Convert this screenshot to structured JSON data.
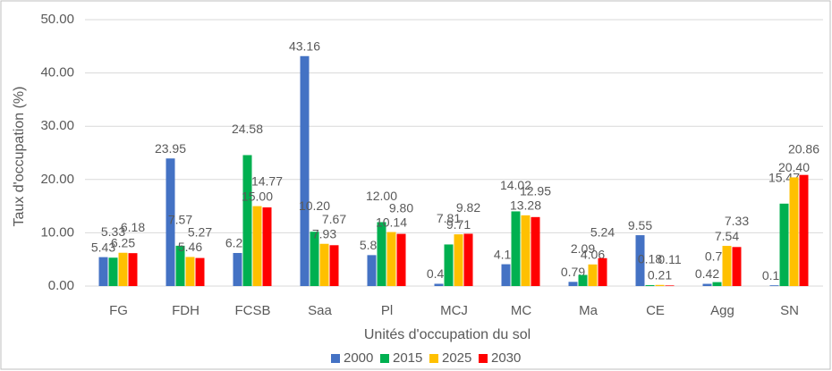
{
  "chart_data": {
    "type": "bar",
    "y_label": "Taux d'occupation (%)",
    "x_label": "Unités d'occupation du sol",
    "categories": [
      "FG",
      "FDH",
      "FCSB",
      "Saa",
      "Pl",
      "MCJ",
      "MC",
      "Ma",
      "CE",
      "Agg",
      "SN"
    ],
    "series": [
      {
        "name": "2000",
        "color": "#4472c4",
        "values": [
          5.43,
          23.95,
          6.21,
          43.16,
          5.81,
          0.43,
          4.1,
          0.79,
          9.55,
          0.42,
          0.14
        ],
        "value_labels": [
          "5.43",
          "23.95",
          "6.21",
          "43.16",
          "5.81",
          "0.43",
          "4.10",
          "0.79",
          "9.55",
          "0.42",
          "0.14"
        ]
      },
      {
        "name": "2015",
        "color": "#00b050",
        "values": [
          5.33,
          7.57,
          24.58,
          10.2,
          12.0,
          7.81,
          14.02,
          2.09,
          0.18,
          0.74,
          15.47
        ],
        "value_labels": [
          "5.33",
          "7.57",
          "24.58",
          "10.20",
          "12.00",
          "7.81",
          "14.02",
          "2.09",
          "0.18",
          "0.74",
          "15.47"
        ]
      },
      {
        "name": "2025",
        "color": "#ffc000",
        "values": [
          6.25,
          5.46,
          15.0,
          7.93,
          10.14,
          9.71,
          13.28,
          4.06,
          0.21,
          7.54,
          20.4
        ],
        "value_labels": [
          "6.25",
          "5.46",
          "15.00",
          "7.93",
          "10.14",
          "9.71",
          "13.28",
          "4.06",
          "0.21",
          "7.54",
          "20.40"
        ]
      },
      {
        "name": "2030",
        "color": "#ff0000",
        "values": [
          6.18,
          5.27,
          14.77,
          7.67,
          9.8,
          9.82,
          12.95,
          5.24,
          0.11,
          7.33,
          20.86
        ],
        "value_labels": [
          "6.18",
          "5.27",
          "14.77",
          "7.67",
          "9.80",
          "9.82",
          "12.95",
          "5.24",
          "0.11",
          "7.33",
          "20.86"
        ]
      }
    ],
    "ylim": [
      0,
      50
    ],
    "yticks": [
      {
        "value": 0,
        "label": "0.00"
      },
      {
        "value": 10,
        "label": "10.00"
      },
      {
        "value": 20,
        "label": "20.00"
      },
      {
        "value": 30,
        "label": "30.00"
      },
      {
        "value": 40,
        "label": "40.00"
      },
      {
        "value": 50,
        "label": "50.00"
      }
    ],
    "grid": true,
    "legend": "bottom"
  }
}
